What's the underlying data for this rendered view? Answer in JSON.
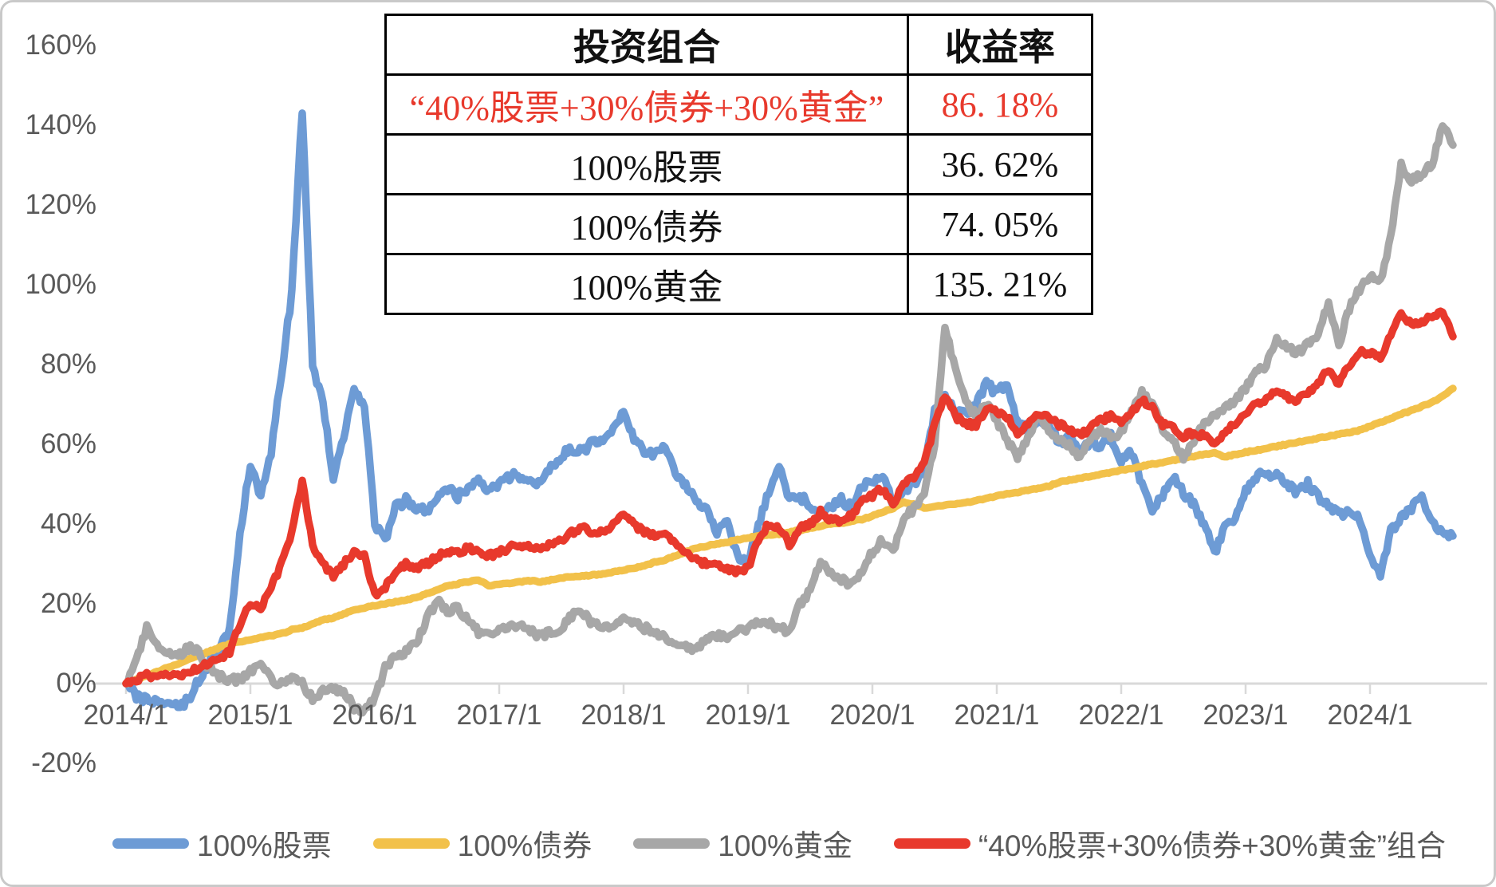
{
  "table": {
    "header": {
      "portfolio": "投资组合",
      "return": "收益率"
    },
    "rows": [
      {
        "portfolio": "“40%股票+30%债券+30%黄金”",
        "return": "86. 18%",
        "highlight": true
      },
      {
        "portfolio": "100%股票",
        "return": "36. 62%",
        "highlight": false
      },
      {
        "portfolio": "100%债券",
        "return": "74. 05%",
        "highlight": false
      },
      {
        "portfolio": "100%黄金",
        "return": "135. 21%",
        "highlight": false
      }
    ]
  },
  "axes": {
    "y_ticks": [
      "160%",
      "140%",
      "120%",
      "100%",
      "80%",
      "60%",
      "40%",
      "20%",
      "0%",
      "-20%"
    ],
    "y_values": [
      160,
      140,
      120,
      100,
      80,
      60,
      40,
      20,
      0,
      -20
    ],
    "x_ticks": [
      "2014/1",
      "2015/1",
      "2016/1",
      "2017/1",
      "2018/1",
      "2019/1",
      "2020/1",
      "2021/1",
      "2022/1",
      "2023/1",
      "2024/1"
    ]
  },
  "legend": {
    "items": [
      {
        "label": "100%股票",
        "color": "#6d9bd5"
      },
      {
        "label": "100%债券",
        "color": "#f2c14a"
      },
      {
        "label": "100%黄金",
        "color": "#a7a7a7"
      },
      {
        "label": "“40%股票+30%债券+30%黄金”组合",
        "color": "#e8392c"
      }
    ]
  },
  "colors": {
    "stocks": "#6d9bd5",
    "bonds": "#f2c14a",
    "gold": "#a7a7a7",
    "combo": "#e8392c",
    "axis_line": "#d9d9d9",
    "axis_text": "#595959",
    "table_border": "#000000",
    "highlight_text": "#e8392c"
  },
  "chart_data": {
    "type": "line",
    "title": "",
    "x_start": "2014/1",
    "x_end": "2024/9",
    "frequency": "monthly",
    "grid": false,
    "legend_position": "bottom",
    "y_axis": {
      "min": -20,
      "max": 160,
      "unit": "%",
      "tick_step": 20
    },
    "series": [
      {
        "name": "100%股票",
        "color": "#6d9bd5",
        "final_return_pct": 36.62,
        "values": [
          0,
          -3,
          -4,
          -5,
          -4,
          -6,
          -4,
          1,
          5,
          8,
          14,
          38,
          55,
          47,
          58,
          78,
          98,
          144,
          80,
          70,
          52,
          62,
          73,
          70,
          40,
          36,
          44,
          46,
          44,
          43,
          46,
          49,
          47,
          49,
          52,
          48,
          50,
          52,
          52,
          51,
          50,
          54,
          57,
          59,
          58,
          61,
          60,
          64,
          68,
          61,
          58,
          57,
          59,
          52,
          50,
          46,
          44,
          38,
          40,
          32,
          30,
          40,
          48,
          55,
          46,
          47,
          45,
          43,
          44,
          46,
          44,
          50,
          50,
          53,
          45,
          48,
          50,
          53,
          68,
          72,
          68,
          68,
          70,
          75,
          73,
          75,
          65,
          64,
          66,
          66,
          60,
          62,
          58,
          60,
          60,
          62,
          56,
          58,
          50,
          44,
          47,
          52,
          48,
          45,
          40,
          33,
          39,
          41,
          48,
          52,
          53,
          52,
          50,
          48,
          50,
          47,
          45,
          42,
          43,
          41,
          31,
          27,
          38,
          42,
          44,
          47,
          41,
          38,
          37
        ]
      },
      {
        "name": "100%债券",
        "color": "#f2c14a",
        "final_return_pct": 74.05,
        "values": [
          0,
          1,
          2,
          3,
          4,
          5,
          6,
          7,
          8,
          9,
          10,
          10.5,
          11,
          11.5,
          12,
          12.5,
          13.5,
          14,
          15,
          16,
          16.5,
          17.5,
          18.5,
          19,
          19.5,
          20,
          20.5,
          21,
          21.5,
          22.5,
          23.5,
          24.5,
          25,
          25.5,
          26,
          24.5,
          25,
          25.2,
          25.5,
          25.8,
          25.5,
          26,
          26.5,
          26.8,
          27,
          27.2,
          27.5,
          28,
          28.5,
          29,
          29.5,
          30.5,
          31,
          32,
          33,
          34,
          34.5,
          35,
          35.5,
          36,
          36.5,
          37,
          37.2,
          37.5,
          38,
          38.5,
          39,
          39.5,
          40,
          40.2,
          40.8,
          41.2,
          42,
          43,
          44,
          45.5,
          45,
          44,
          44.5,
          44.8,
          45,
          45.5,
          45.8,
          46.5,
          47,
          47.5,
          48,
          48.5,
          49,
          49.5,
          50.5,
          51,
          51.5,
          52,
          52.5,
          53,
          53.5,
          54,
          54.5,
          55,
          55.5,
          56,
          56.5,
          57,
          57.5,
          57.8,
          56.8,
          57.5,
          58,
          58.5,
          59,
          59.5,
          60,
          60.5,
          61,
          61.5,
          62,
          62.5,
          63,
          63.5,
          64.5,
          65.5,
          66.5,
          67.5,
          68.5,
          69.5,
          70.5,
          72,
          74
        ]
      },
      {
        "name": "100%黄金",
        "color": "#a7a7a7",
        "final_return_pct": 135.21,
        "values": [
          0,
          6,
          14,
          10,
          8,
          7,
          9,
          8,
          4,
          2,
          1,
          1,
          3,
          5,
          1,
          0,
          2,
          0,
          -4,
          -2,
          -1,
          -2,
          -6,
          -7,
          -4,
          4,
          7,
          8,
          10,
          16,
          21,
          18,
          19,
          16,
          13,
          12,
          13,
          14,
          15,
          13,
          12,
          13,
          14,
          17,
          18,
          15,
          14,
          15,
          16,
          15,
          14,
          13,
          12,
          10,
          9,
          9,
          11,
          12,
          12,
          13,
          14,
          15,
          15,
          14,
          13,
          20,
          23,
          31,
          28,
          26,
          25,
          28,
          33,
          36,
          33,
          41,
          44,
          47,
          60,
          89,
          79,
          71,
          67,
          70,
          66,
          61,
          57,
          62,
          67,
          64,
          61,
          60,
          57,
          61,
          64,
          62,
          63,
          68,
          73,
          70,
          64,
          61,
          57,
          61,
          65,
          67,
          69,
          71,
          74,
          78,
          80,
          86,
          84,
          83,
          85,
          88,
          95,
          85,
          94,
          99,
          102,
          101,
          112,
          130,
          126,
          128,
          130,
          140,
          135
        ]
      },
      {
        "name": "“40%股票+30%债券+30%黄金”组合",
        "color": "#e8392c",
        "final_return_pct": 86.18,
        "values": [
          0,
          1,
          2,
          2,
          2,
          2,
          3,
          4,
          5,
          6,
          8,
          15,
          20,
          19,
          24,
          30,
          38,
          51,
          35,
          30,
          27,
          30,
          33,
          32,
          22,
          24,
          28,
          30,
          29,
          30,
          32,
          33,
          33,
          34,
          33,
          32,
          33,
          34,
          35,
          34,
          34,
          35,
          36,
          38,
          39,
          38,
          38,
          40,
          42,
          40,
          38,
          37,
          38,
          35,
          33,
          31,
          30,
          30,
          29,
          28,
          29,
          36,
          40,
          39,
          35,
          39,
          40,
          43,
          41,
          41,
          42,
          46,
          47,
          49,
          45,
          50,
          52,
          55,
          65,
          72,
          67,
          65,
          65,
          69,
          68,
          67,
          63,
          65,
          68,
          67,
          65,
          64,
          62,
          64,
          66,
          67,
          66,
          68,
          71,
          69,
          65,
          64,
          62,
          63,
          62,
          60,
          63,
          65,
          68,
          70,
          71,
          74,
          72,
          71,
          73,
          75,
          79,
          75,
          80,
          83,
          83,
          82,
          87,
          93,
          90,
          91,
          92,
          93,
          87
        ]
      }
    ]
  }
}
